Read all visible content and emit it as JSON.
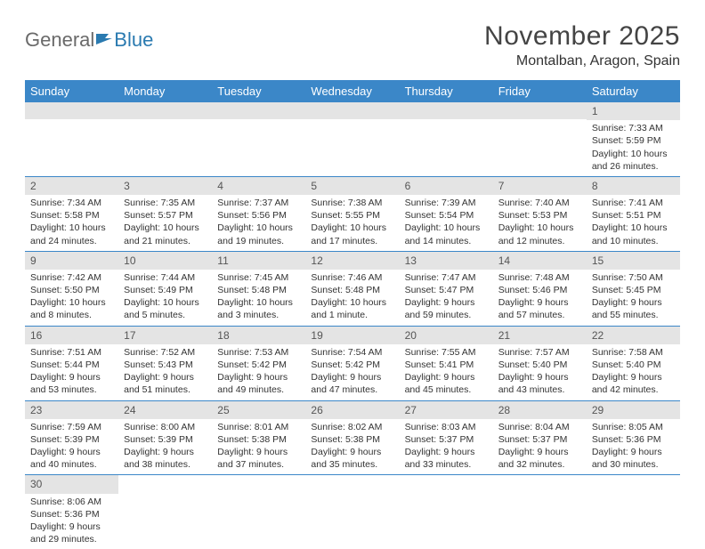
{
  "logo": {
    "part1": "General",
    "part2": "Blue"
  },
  "title": "November 2025",
  "location": "Montalban, Aragon, Spain",
  "weekdays": [
    "Sunday",
    "Monday",
    "Tuesday",
    "Wednesday",
    "Thursday",
    "Friday",
    "Saturday"
  ],
  "colors": {
    "header_bg": "#3b87c8",
    "header_text": "#ffffff",
    "daynum_bg": "#e4e4e4",
    "row_border": "#3b87c8",
    "logo_blue": "#2a7ab0"
  },
  "weeks": [
    [
      null,
      null,
      null,
      null,
      null,
      null,
      {
        "n": "1",
        "sr": "Sunrise: 7:33 AM",
        "ss": "Sunset: 5:59 PM",
        "d1": "Daylight: 10 hours",
        "d2": "and 26 minutes."
      }
    ],
    [
      {
        "n": "2",
        "sr": "Sunrise: 7:34 AM",
        "ss": "Sunset: 5:58 PM",
        "d1": "Daylight: 10 hours",
        "d2": "and 24 minutes."
      },
      {
        "n": "3",
        "sr": "Sunrise: 7:35 AM",
        "ss": "Sunset: 5:57 PM",
        "d1": "Daylight: 10 hours",
        "d2": "and 21 minutes."
      },
      {
        "n": "4",
        "sr": "Sunrise: 7:37 AM",
        "ss": "Sunset: 5:56 PM",
        "d1": "Daylight: 10 hours",
        "d2": "and 19 minutes."
      },
      {
        "n": "5",
        "sr": "Sunrise: 7:38 AM",
        "ss": "Sunset: 5:55 PM",
        "d1": "Daylight: 10 hours",
        "d2": "and 17 minutes."
      },
      {
        "n": "6",
        "sr": "Sunrise: 7:39 AM",
        "ss": "Sunset: 5:54 PM",
        "d1": "Daylight: 10 hours",
        "d2": "and 14 minutes."
      },
      {
        "n": "7",
        "sr": "Sunrise: 7:40 AM",
        "ss": "Sunset: 5:53 PM",
        "d1": "Daylight: 10 hours",
        "d2": "and 12 minutes."
      },
      {
        "n": "8",
        "sr": "Sunrise: 7:41 AM",
        "ss": "Sunset: 5:51 PM",
        "d1": "Daylight: 10 hours",
        "d2": "and 10 minutes."
      }
    ],
    [
      {
        "n": "9",
        "sr": "Sunrise: 7:42 AM",
        "ss": "Sunset: 5:50 PM",
        "d1": "Daylight: 10 hours",
        "d2": "and 8 minutes."
      },
      {
        "n": "10",
        "sr": "Sunrise: 7:44 AM",
        "ss": "Sunset: 5:49 PM",
        "d1": "Daylight: 10 hours",
        "d2": "and 5 minutes."
      },
      {
        "n": "11",
        "sr": "Sunrise: 7:45 AM",
        "ss": "Sunset: 5:48 PM",
        "d1": "Daylight: 10 hours",
        "d2": "and 3 minutes."
      },
      {
        "n": "12",
        "sr": "Sunrise: 7:46 AM",
        "ss": "Sunset: 5:48 PM",
        "d1": "Daylight: 10 hours",
        "d2": "and 1 minute."
      },
      {
        "n": "13",
        "sr": "Sunrise: 7:47 AM",
        "ss": "Sunset: 5:47 PM",
        "d1": "Daylight: 9 hours",
        "d2": "and 59 minutes."
      },
      {
        "n": "14",
        "sr": "Sunrise: 7:48 AM",
        "ss": "Sunset: 5:46 PM",
        "d1": "Daylight: 9 hours",
        "d2": "and 57 minutes."
      },
      {
        "n": "15",
        "sr": "Sunrise: 7:50 AM",
        "ss": "Sunset: 5:45 PM",
        "d1": "Daylight: 9 hours",
        "d2": "and 55 minutes."
      }
    ],
    [
      {
        "n": "16",
        "sr": "Sunrise: 7:51 AM",
        "ss": "Sunset: 5:44 PM",
        "d1": "Daylight: 9 hours",
        "d2": "and 53 minutes."
      },
      {
        "n": "17",
        "sr": "Sunrise: 7:52 AM",
        "ss": "Sunset: 5:43 PM",
        "d1": "Daylight: 9 hours",
        "d2": "and 51 minutes."
      },
      {
        "n": "18",
        "sr": "Sunrise: 7:53 AM",
        "ss": "Sunset: 5:42 PM",
        "d1": "Daylight: 9 hours",
        "d2": "and 49 minutes."
      },
      {
        "n": "19",
        "sr": "Sunrise: 7:54 AM",
        "ss": "Sunset: 5:42 PM",
        "d1": "Daylight: 9 hours",
        "d2": "and 47 minutes."
      },
      {
        "n": "20",
        "sr": "Sunrise: 7:55 AM",
        "ss": "Sunset: 5:41 PM",
        "d1": "Daylight: 9 hours",
        "d2": "and 45 minutes."
      },
      {
        "n": "21",
        "sr": "Sunrise: 7:57 AM",
        "ss": "Sunset: 5:40 PM",
        "d1": "Daylight: 9 hours",
        "d2": "and 43 minutes."
      },
      {
        "n": "22",
        "sr": "Sunrise: 7:58 AM",
        "ss": "Sunset: 5:40 PM",
        "d1": "Daylight: 9 hours",
        "d2": "and 42 minutes."
      }
    ],
    [
      {
        "n": "23",
        "sr": "Sunrise: 7:59 AM",
        "ss": "Sunset: 5:39 PM",
        "d1": "Daylight: 9 hours",
        "d2": "and 40 minutes."
      },
      {
        "n": "24",
        "sr": "Sunrise: 8:00 AM",
        "ss": "Sunset: 5:39 PM",
        "d1": "Daylight: 9 hours",
        "d2": "and 38 minutes."
      },
      {
        "n": "25",
        "sr": "Sunrise: 8:01 AM",
        "ss": "Sunset: 5:38 PM",
        "d1": "Daylight: 9 hours",
        "d2": "and 37 minutes."
      },
      {
        "n": "26",
        "sr": "Sunrise: 8:02 AM",
        "ss": "Sunset: 5:38 PM",
        "d1": "Daylight: 9 hours",
        "d2": "and 35 minutes."
      },
      {
        "n": "27",
        "sr": "Sunrise: 8:03 AM",
        "ss": "Sunset: 5:37 PM",
        "d1": "Daylight: 9 hours",
        "d2": "and 33 minutes."
      },
      {
        "n": "28",
        "sr": "Sunrise: 8:04 AM",
        "ss": "Sunset: 5:37 PM",
        "d1": "Daylight: 9 hours",
        "d2": "and 32 minutes."
      },
      {
        "n": "29",
        "sr": "Sunrise: 8:05 AM",
        "ss": "Sunset: 5:36 PM",
        "d1": "Daylight: 9 hours",
        "d2": "and 30 minutes."
      }
    ],
    [
      {
        "n": "30",
        "sr": "Sunrise: 8:06 AM",
        "ss": "Sunset: 5:36 PM",
        "d1": "Daylight: 9 hours",
        "d2": "and 29 minutes."
      },
      null,
      null,
      null,
      null,
      null,
      null
    ]
  ]
}
